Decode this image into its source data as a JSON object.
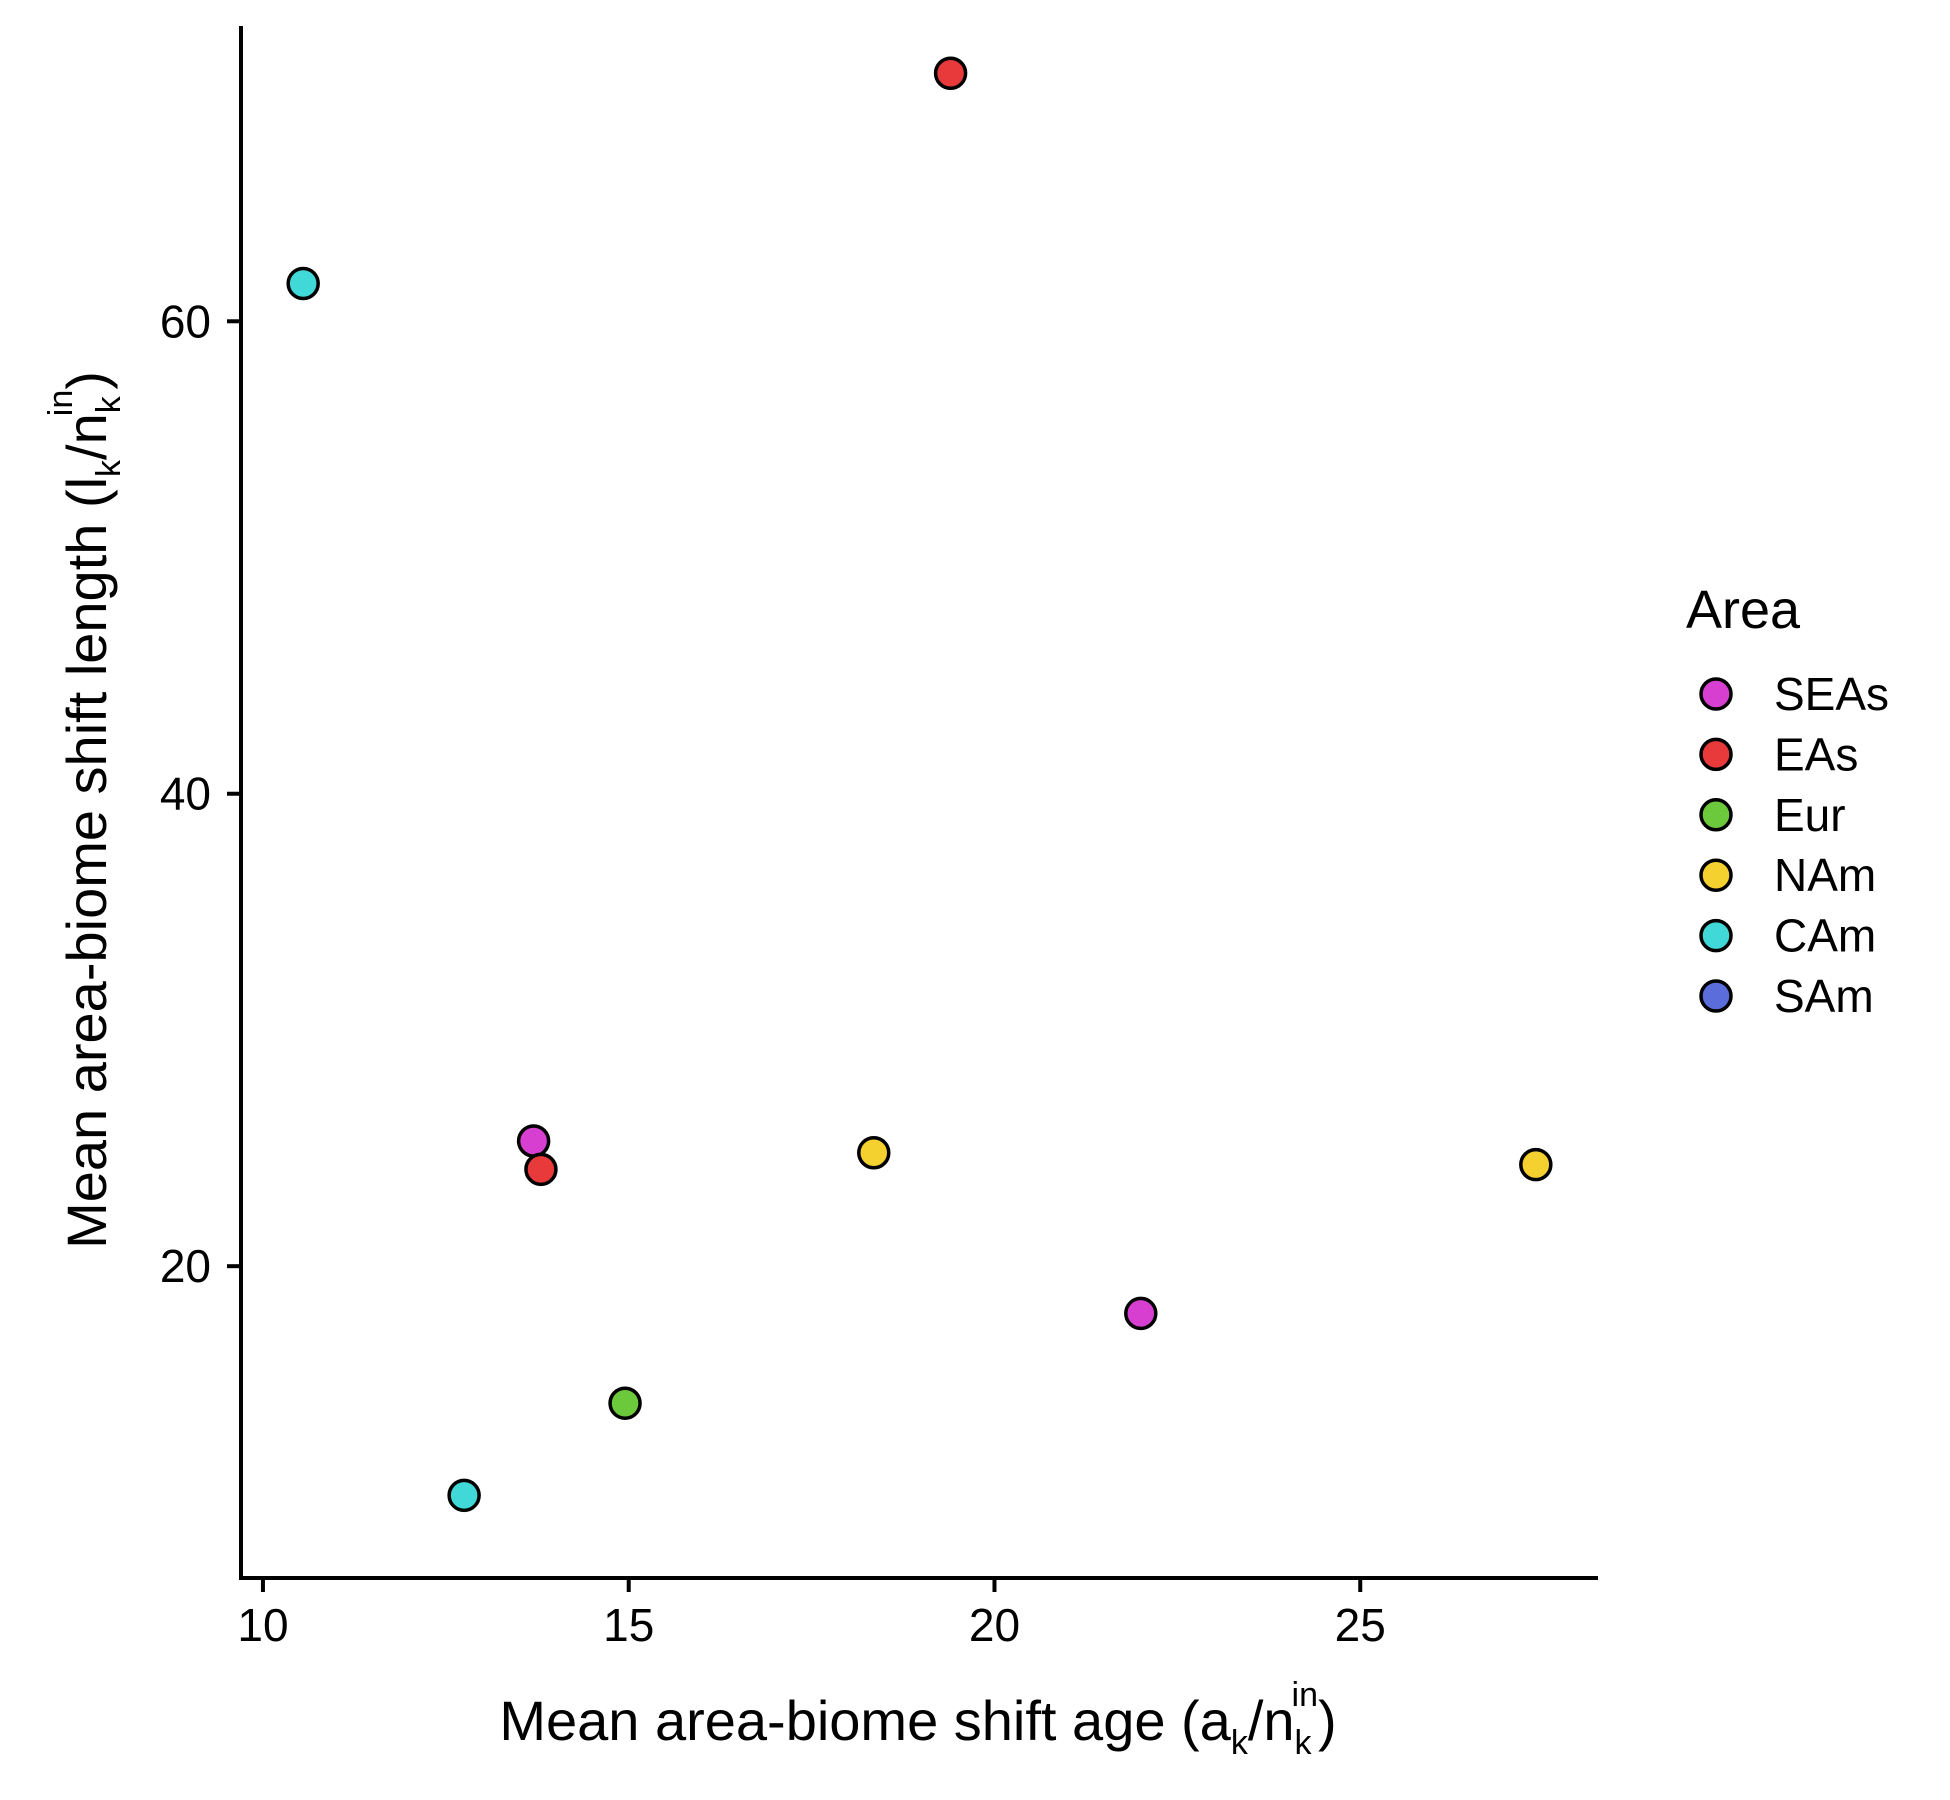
{
  "chart_data": {
    "type": "scatter",
    "xlabel": {
      "main": "Mean area-biome shift age (a",
      "sub1": "k",
      "slash": "/n",
      "sub2": "k",
      "sup": "in",
      "close": ")"
    },
    "ylabel": {
      "main": "Mean area-biome shift length (l",
      "sub1": "k",
      "slash": "/n",
      "sub2": "k",
      "sup": "in",
      "close": ")"
    },
    "xlim": [
      9.7,
      28.25
    ],
    "ylim": [
      6.8,
      72.5
    ],
    "x_ticks": [
      10,
      15,
      20,
      25
    ],
    "y_ticks": [
      20,
      40,
      60
    ],
    "grid": false,
    "legend": {
      "title": "Area",
      "placement": "right",
      "entries": [
        {
          "name": "SEAs",
          "color": "#d63fd0"
        },
        {
          "name": "EAs",
          "color": "#e8393b"
        },
        {
          "name": "Eur",
          "color": "#6cc93c"
        },
        {
          "name": "NAm",
          "color": "#f4d12f"
        },
        {
          "name": "CAm",
          "color": "#41d8d8"
        },
        {
          "name": "SAm",
          "color": "#5b6ddb"
        }
      ]
    },
    "points": [
      {
        "area": "EAs",
        "x": 19.4,
        "y": 70.5
      },
      {
        "area": "CAm",
        "x": 10.55,
        "y": 61.6
      },
      {
        "area": "SEAs",
        "x": 13.7,
        "y": 25.3
      },
      {
        "area": "EAs",
        "x": 13.8,
        "y": 24.1
      },
      {
        "area": "NAm",
        "x": 18.35,
        "y": 24.8
      },
      {
        "area": "NAm",
        "x": 27.4,
        "y": 24.3
      },
      {
        "area": "SEAs",
        "x": 22.0,
        "y": 18.0
      },
      {
        "area": "Eur",
        "x": 14.95,
        "y": 14.2
      },
      {
        "area": "CAm",
        "x": 12.75,
        "y": 10.3
      }
    ]
  }
}
